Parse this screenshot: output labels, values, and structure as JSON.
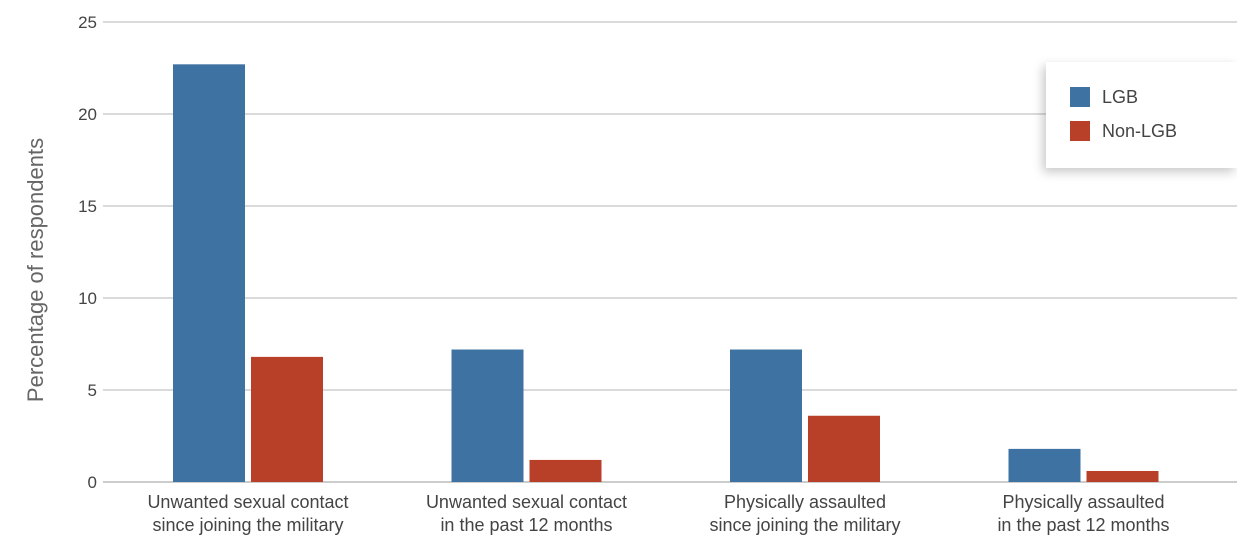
{
  "chart_data": {
    "type": "bar",
    "categories": [
      [
        "Unwanted sexual contact",
        "since joining the military"
      ],
      [
        "Unwanted sexual contact",
        "in the past 12 months"
      ],
      [
        "Physically assaulted",
        "since joining the military"
      ],
      [
        "Physically assaulted",
        "in the past 12 months"
      ]
    ],
    "series": [
      {
        "name": "LGB",
        "color": "#3e72a3",
        "values": [
          22.7,
          7.2,
          7.2,
          1.8
        ]
      },
      {
        "name": "Non-LGB",
        "color": "#b83f28",
        "values": [
          6.8,
          1.2,
          3.6,
          0.6
        ]
      }
    ],
    "ylabel": "Percentage of respondents",
    "ylim": [
      0,
      25
    ],
    "yticks": [
      0,
      5,
      10,
      15,
      20,
      25
    ],
    "grid": true,
    "legend_position": "top-right"
  }
}
